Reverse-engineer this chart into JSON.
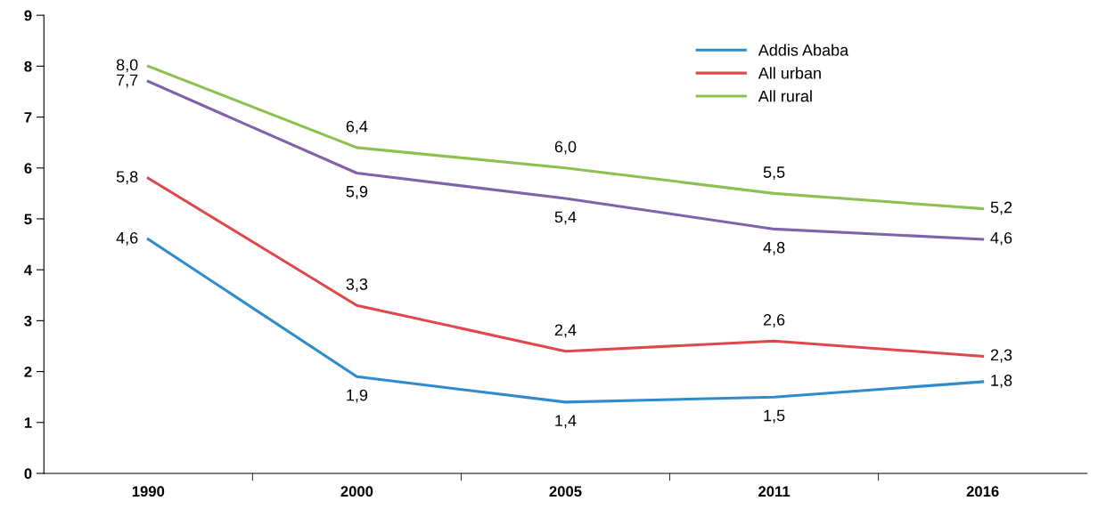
{
  "chart_data": {
    "type": "line",
    "categories": [
      "1990",
      "2000",
      "2005",
      "2011",
      "2016"
    ],
    "series": [
      {
        "name": "Addis Ababa",
        "color": "#2e8bcc",
        "values": [
          4.6,
          1.9,
          1.4,
          1.5,
          1.8
        ],
        "value_labels": [
          "4,6",
          "1,9",
          "1,4",
          "1,5",
          "1,8"
        ]
      },
      {
        "name": "All urban",
        "color": "#e0474c",
        "values": [
          5.8,
          3.3,
          2.4,
          2.6,
          2.3
        ],
        "value_labels": [
          "5,8",
          "3,3",
          "2,4",
          "2,6",
          "2,3"
        ]
      },
      {
        "name": "All rural",
        "color": "#8cc152",
        "values": [
          8.0,
          6.4,
          6.0,
          5.5,
          5.2
        ],
        "value_labels": [
          "8,0",
          "6,4",
          "6,0",
          "5,5",
          "5,2"
        ]
      },
      {
        "color": "#7f63a8",
        "values": [
          7.7,
          5.9,
          5.4,
          4.8,
          4.6
        ],
        "value_labels": [
          "7,7",
          "5,9",
          "5,4",
          "4,8",
          "4,6"
        ]
      }
    ],
    "ylim": [
      0,
      9
    ],
    "yticks": [
      0,
      1,
      2,
      3,
      4,
      5,
      6,
      7,
      8,
      9
    ],
    "grid": false,
    "legend": "top right",
    "marker": "none",
    "line_style": "solid"
  }
}
